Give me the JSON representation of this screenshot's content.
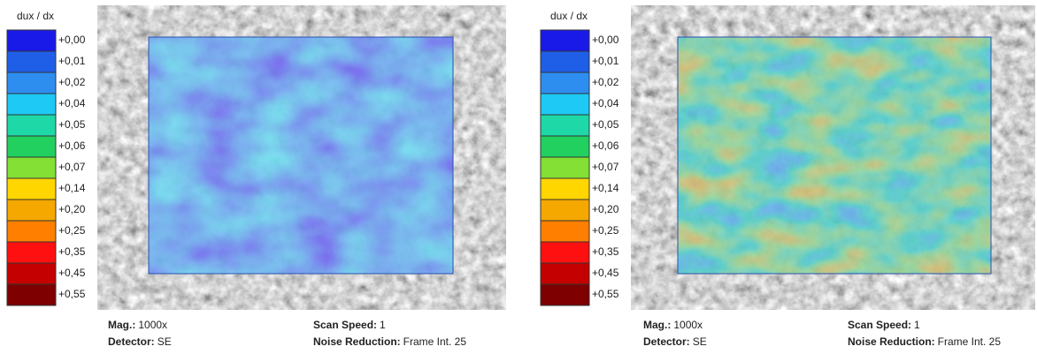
{
  "panels": [
    {
      "colorbar": {
        "title": "dux / dx",
        "levels": [
          {
            "label": "+0,00",
            "color": "#1a1ae8"
          },
          {
            "label": "+0,01",
            "color": "#1f5fe8"
          },
          {
            "label": "+0,02",
            "color": "#2d8ef0"
          },
          {
            "label": "+0,04",
            "color": "#1ecaf5"
          },
          {
            "label": "+0,05",
            "color": "#1fd8a8"
          },
          {
            "label": "+0,06",
            "color": "#22d060"
          },
          {
            "label": "+0,07",
            "color": "#84e034"
          },
          {
            "label": "+0,14",
            "color": "#ffd600"
          },
          {
            "label": "+0,20",
            "color": "#f5a800"
          },
          {
            "label": "+0,25",
            "color": "#ff7f00"
          },
          {
            "label": "+0,35",
            "color": "#ff1010"
          },
          {
            "label": "+0,45",
            "color": "#c40000"
          },
          {
            "label": "+0,55",
            "color": "#7e0000"
          }
        ]
      },
      "info": {
        "mag_label": "Mag.:",
        "mag": "1000x",
        "detector_label": "Detector:",
        "detector": "SE",
        "speed_label": "Scan Speed:",
        "speed": "1",
        "noise_label": "Noise Reduction:",
        "noise": "Frame Int. 25"
      }
    },
    {
      "colorbar": {
        "title": "dux / dx",
        "levels": [
          {
            "label": "+0,00",
            "color": "#1a1ae8"
          },
          {
            "label": "+0,01",
            "color": "#1f5fe8"
          },
          {
            "label": "+0,02",
            "color": "#2d8ef0"
          },
          {
            "label": "+0,04",
            "color": "#1ecaf5"
          },
          {
            "label": "+0,05",
            "color": "#1fd8a8"
          },
          {
            "label": "+0,06",
            "color": "#22d060"
          },
          {
            "label": "+0,07",
            "color": "#84e034"
          },
          {
            "label": "+0,14",
            "color": "#ffd600"
          },
          {
            "label": "+0,20",
            "color": "#f5a800"
          },
          {
            "label": "+0,25",
            "color": "#ff7f00"
          },
          {
            "label": "+0,35",
            "color": "#ff1010"
          },
          {
            "label": "+0,45",
            "color": "#c40000"
          },
          {
            "label": "+0,55",
            "color": "#7e0000"
          }
        ]
      },
      "info": {
        "mag_label": "Mag.:",
        "mag": "1000x",
        "detector_label": "Detector:",
        "detector": "SE",
        "speed_label": "Scan Speed:",
        "speed": "1",
        "noise_label": "Noise Reduction:",
        "noise": "Frame Int. 25"
      }
    }
  ]
}
